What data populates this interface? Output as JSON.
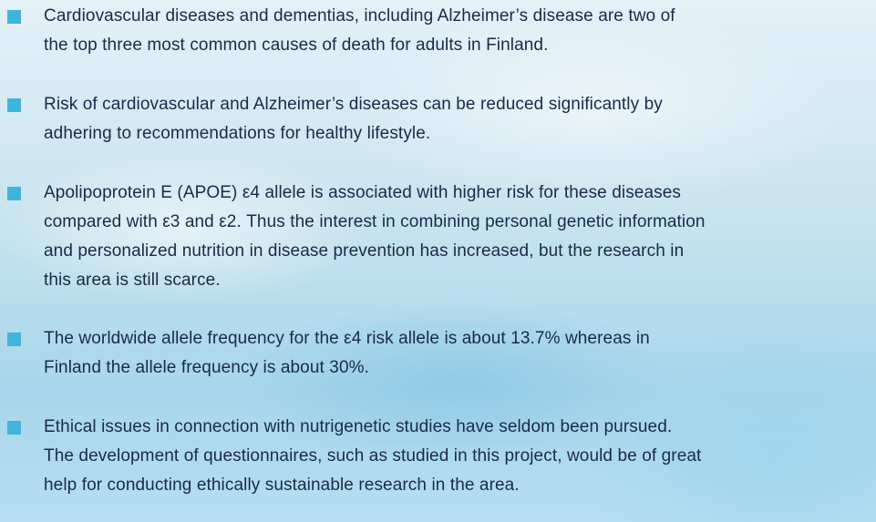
{
  "bullets": [
    [
      "Cardiovascular diseases and dementias, including Alzheimer’s disease are two of",
      "the top three most common causes of death for adults in Finland."
    ],
    [
      "Risk of cardiovascular and Alzheimer’s diseases can be reduced significantly by",
      "adhering to recommendations for healthy lifestyle."
    ],
    [
      "Apolipoprotein E (APOE) ε4 allele is associated with higher risk for these diseases",
      "compared with ε3 and ε2. Thus the interest in combining personal genetic information",
      "and personalized nutrition in disease prevention has increased, but the research in",
      "this area is still scarce."
    ],
    [
      "The worldwide allele frequency for the  ε4 risk allele is about 13.7% whereas in",
      "Finland the allele frequency is about 30%."
    ],
    [
      "Ethical issues in connection with nutrigenetic studies have seldom been pursued.",
      "The development of questionnaires, such as studied in this project, would be of great",
      "help for conducting ethically sustainable research in the area."
    ]
  ]
}
